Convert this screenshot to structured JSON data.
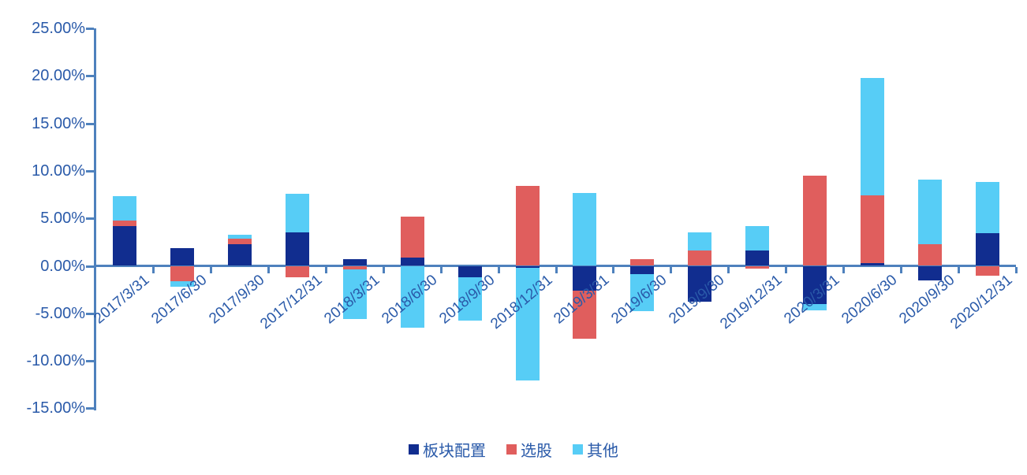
{
  "chart_data": {
    "type": "bar",
    "stacked": true,
    "title": "",
    "xlabel": "",
    "ylabel": "",
    "categories": [
      "2017/3/31",
      "2017/6/30",
      "2017/9/30",
      "2017/12/31",
      "2018/3/31",
      "2018/6/30",
      "2018/9/30",
      "2018/12/31",
      "2019/3/31",
      "2019/6/30",
      "2019/9/30",
      "2019/12/31",
      "2020/3/31",
      "2020/6/30",
      "2020/9/30",
      "2020/12/31"
    ],
    "series": [
      {
        "name": "板块配置",
        "color": "#112D8F",
        "values": [
          4.2,
          1.9,
          2.3,
          3.5,
          0.7,
          0.9,
          -1.2,
          -0.2,
          -2.6,
          -0.9,
          -3.8,
          1.6,
          -4.0,
          0.3,
          -1.5,
          3.4
        ]
      },
      {
        "name": "选股",
        "color": "#E05E5D",
        "values": [
          0.6,
          -1.6,
          0.55,
          -1.2,
          -0.4,
          4.3,
          0.0,
          8.4,
          -5.1,
          0.7,
          1.6,
          -0.3,
          9.5,
          7.1,
          2.3,
          -1.0
        ]
      },
      {
        "name": "其他",
        "color": "#57CDF6",
        "values": [
          2.5,
          -0.6,
          0.45,
          4.1,
          -5.2,
          -6.5,
          -4.6,
          -11.9,
          7.7,
          -3.9,
          1.9,
          2.6,
          -0.7,
          12.4,
          6.8,
          5.4
        ]
      }
    ],
    "ylim": [
      -15,
      25
    ],
    "ytick_step": 5,
    "ytick_labels": [
      "25.00%",
      "20.00%",
      "15.00%",
      "10.00%",
      "5.00%",
      "0.00%",
      "-5.00%",
      "-10.00%",
      "-15.00%"
    ],
    "grid": false,
    "legend_position": "bottom",
    "axis_color": "#4E81BD",
    "label_color": "#2A5AA9"
  }
}
